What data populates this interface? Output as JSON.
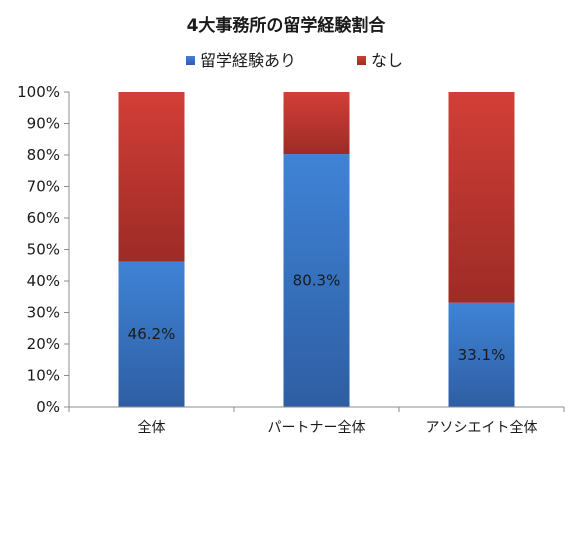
{
  "chart_data": {
    "type": "bar",
    "stacked": true,
    "title": "4大事務所の留学経験割合",
    "categories": [
      "全体",
      "パートナー全体",
      "アソシエイト全体"
    ],
    "series": [
      {
        "name": "留学経験あり",
        "values": [
          46.2,
          80.3,
          33.1
        ],
        "color": "#3a78c9",
        "data_labels": [
          "46.2%",
          "80.3%",
          "33.1%"
        ]
      },
      {
        "name": "なし",
        "values": [
          53.8,
          19.7,
          66.9
        ],
        "color": "#c0362f"
      }
    ],
    "ylim": [
      0,
      100
    ],
    "y_ticks": [
      "0%",
      "10%",
      "20%",
      "30%",
      "40%",
      "50%",
      "60%",
      "70%",
      "80%",
      "90%",
      "100%"
    ],
    "legend_position": "top",
    "grid": false
  }
}
